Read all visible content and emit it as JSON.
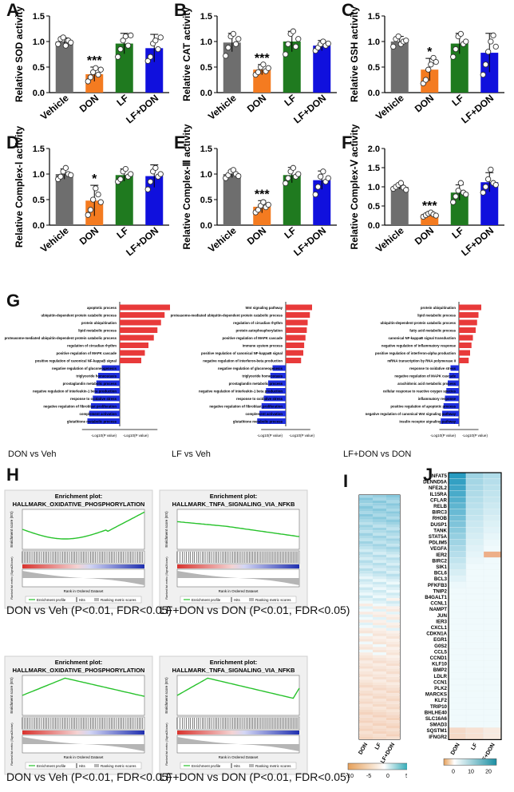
{
  "panels": {
    "A": {
      "letter": "A",
      "ylabel": "Relative SOD activity"
    },
    "B": {
      "letter": "B",
      "ylabel": "Relative CAT activity"
    },
    "C": {
      "letter": "C",
      "ylabel": "Relative GSH activity"
    },
    "D": {
      "letter": "D",
      "ylabel": "Relative Complex-Ⅰ activity"
    },
    "E": {
      "letter": "E",
      "ylabel": "Relative Complex-Ⅲ activity"
    },
    "F": {
      "letter": "F",
      "ylabel": "Relative Complex-Ⅴ activity"
    },
    "G": {
      "letter": "G",
      "subtitles": [
        "DON vs Veh",
        "LF vs Veh",
        "LF+DON vs DON"
      ],
      "axis_neg": "-Log10(P value)",
      "axis_pos": "-Log10(P value)"
    },
    "H": {
      "letter": "H",
      "plot_title": "Enrichment plot:",
      "es_label": "Enrichment score (ES)",
      "rank_label": "Rank in Ordered Dataset",
      "metric_label": "Ranked list metric (Signal2Noise)",
      "legend": [
        "Enrichment profile",
        "Hits",
        "Ranking metric scores"
      ],
      "plots": [
        {
          "hallmark": "HALLMARK_OXIDATIVE_PHOSPHORYLATION",
          "caption": "DON vs Veh  (P<0.01, FDR<0.05)"
        },
        {
          "hallmark": "HALLMARK_TNFA_SIGNALING_VIA_NFKB",
          "caption": "LF+DON vs DON  (P<0.01, FDR<0.05)"
        },
        {
          "hallmark": "HALLMARK_OXIDATIVE_PHOSPHORYLATION",
          "caption": "DON vs Veh  (P<0.01, FDR<0.05)"
        },
        {
          "hallmark": "HALLMARK_TNFA_SIGNALING_VIA_NFKB",
          "caption": "LF+DON vs DON  (P<0.01, FDR<0.05)"
        }
      ]
    },
    "I": {
      "letter": "I",
      "columns": [
        "DON",
        "LF",
        "LF+DON"
      ],
      "scale": [
        "-10",
        "-5",
        "0",
        "5"
      ]
    },
    "J": {
      "letter": "J",
      "columns": [
        "DON",
        "LF",
        "LF+DON"
      ],
      "scale": [
        "0",
        "10",
        "20"
      ],
      "genes": [
        "NFAT5",
        "DENND5A",
        "NFE2L2",
        "IL15RA",
        "CFLAR",
        "RELB",
        "BIRC3",
        "RHOB",
        "DUSP1",
        "TANK",
        "STAT5A",
        "PDLIM5",
        "VEGFA",
        "IER2",
        "BIRC2",
        "SIK1",
        "BCL6",
        "BCL3",
        "PFKFB3",
        "TNIP2",
        "B4GALT1",
        "CCNL1",
        "NAMPT",
        "JUN",
        "IER3",
        "CXCL1",
        "CDKN1A",
        "EGR1",
        "G0S2",
        "CCL5",
        "CCND1",
        "KLF10",
        "BMP2",
        "LDLR",
        "CCN1",
        "PLK2",
        "MARCKS",
        "KLF2",
        "TRIP10",
        "BHLHE40",
        "SLC16A6",
        "SMAD3",
        "SQSTM1",
        "IFNGR2"
      ]
    }
  },
  "chart_data": [
    {
      "type": "bar",
      "panel": "A",
      "ylabel": "Relative SOD activity",
      "categories": [
        "Vehicle",
        "DON",
        "LF",
        "LF+DON"
      ],
      "values": [
        1.0,
        0.36,
        0.96,
        0.87
      ],
      "errors": [
        0.07,
        0.14,
        0.2,
        0.27
      ],
      "ylim": [
        0,
        1.5
      ],
      "yticks": [
        "0.0",
        "0.5",
        "1.0",
        "1.5"
      ],
      "colors": [
        "#6e6e6e",
        "#f47b20",
        "#1f7a1f",
        "#1010dd"
      ],
      "significance": [
        "",
        "***",
        "",
        ""
      ],
      "points": [
        [
          0.95,
          1.05,
          1.08,
          0.92,
          1.02,
          0.98
        ],
        [
          0.22,
          0.3,
          0.4,
          0.48,
          0.35,
          0.45
        ],
        [
          0.7,
          0.85,
          1.02,
          1.1,
          0.92,
          1.12
        ],
        [
          0.62,
          0.7,
          0.96,
          1.02,
          0.85,
          1.08
        ]
      ]
    },
    {
      "type": "bar",
      "panel": "B",
      "ylabel": "Relative CAT activity",
      "categories": [
        "Vehicle",
        "DON",
        "LF",
        "LF+DON"
      ],
      "values": [
        0.98,
        0.45,
        1.0,
        0.92
      ],
      "errors": [
        0.18,
        0.1,
        0.2,
        0.1
      ],
      "ylim": [
        0,
        1.5
      ],
      "yticks": [
        "0.0",
        "0.5",
        "1.0",
        "1.5"
      ],
      "colors": [
        "#6e6e6e",
        "#f47b20",
        "#1f7a1f",
        "#1010dd"
      ],
      "significance": [
        "",
        "***",
        "",
        ""
      ],
      "points": [
        [
          0.72,
          0.88,
          1.1,
          1.15,
          0.95,
          1.05
        ],
        [
          0.35,
          0.4,
          0.5,
          0.55,
          0.42,
          0.48
        ],
        [
          0.75,
          0.95,
          1.15,
          1.2,
          0.9,
          1.05
        ],
        [
          0.82,
          0.88,
          0.95,
          1.0,
          0.92,
          0.96
        ]
      ]
    },
    {
      "type": "bar",
      "panel": "C",
      "ylabel": "Relative GSH activity",
      "categories": [
        "Vehicle",
        "DON",
        "LF",
        "LF+DON"
      ],
      "values": [
        1.0,
        0.45,
        0.96,
        0.78
      ],
      "errors": [
        0.1,
        0.22,
        0.2,
        0.38
      ],
      "ylim": [
        0,
        1.5
      ],
      "yticks": [
        "0.0",
        "0.5",
        "1.0",
        "1.5"
      ],
      "colors": [
        "#6e6e6e",
        "#f47b20",
        "#1f7a1f",
        "#1010dd"
      ],
      "significance": [
        "",
        "*",
        "",
        ""
      ],
      "points": [
        [
          0.9,
          1.05,
          1.1,
          0.95,
          1.0,
          1.02
        ],
        [
          0.18,
          0.25,
          0.45,
          0.55,
          0.68,
          0.6
        ],
        [
          0.7,
          0.85,
          1.1,
          1.15,
          0.95,
          1.0
        ],
        [
          0.35,
          0.55,
          0.8,
          1.0,
          1.12,
          0.9
        ]
      ]
    },
    {
      "type": "bar",
      "panel": "D",
      "ylabel": "Relative Complex-Ⅰ activity",
      "categories": [
        "Vehicle",
        "DON",
        "LF",
        "LF+DON"
      ],
      "values": [
        1.0,
        0.48,
        0.98,
        0.96
      ],
      "errors": [
        0.1,
        0.3,
        0.12,
        0.22
      ],
      "ylim": [
        0,
        1.5
      ],
      "yticks": [
        "0.0",
        "0.5",
        "1.0",
        "1.5"
      ],
      "colors": [
        "#6e6e6e",
        "#f47b20",
        "#1f7a1f",
        "#1010dd"
      ],
      "significance": [
        "",
        "*",
        "",
        ""
      ],
      "points": [
        [
          0.9,
          0.95,
          1.05,
          1.12,
          1.0,
          0.98
        ],
        [
          0.2,
          0.3,
          0.5,
          0.72,
          0.6,
          0.45
        ],
        [
          0.85,
          0.9,
          1.05,
          1.1,
          0.95,
          1.0
        ],
        [
          0.7,
          0.85,
          1.05,
          1.12,
          0.95,
          1.0
        ]
      ]
    },
    {
      "type": "bar",
      "panel": "E",
      "ylabel": "Relative Complex-Ⅲ activity",
      "categories": [
        "Vehicle",
        "DON",
        "LF",
        "LF+DON"
      ],
      "values": [
        1.0,
        0.36,
        0.98,
        0.88
      ],
      "errors": [
        0.07,
        0.12,
        0.15,
        0.18
      ],
      "ylim": [
        0,
        1.5
      ],
      "yticks": [
        "0.0",
        "0.5",
        "1.0",
        "1.5"
      ],
      "colors": [
        "#6e6e6e",
        "#f47b20",
        "#1f7a1f",
        "#1010dd"
      ],
      "significance": [
        "",
        "***",
        "",
        ""
      ],
      "points": [
        [
          0.92,
          0.98,
          1.05,
          1.08,
          1.0,
          0.96
        ],
        [
          0.25,
          0.3,
          0.38,
          0.45,
          0.35,
          0.4
        ],
        [
          0.82,
          0.92,
          1.05,
          1.12,
          0.95,
          1.0
        ],
        [
          0.6,
          0.75,
          0.95,
          1.05,
          0.85,
          0.92
        ]
      ]
    },
    {
      "type": "bar",
      "panel": "F",
      "ylabel": "Relative Complex-Ⅴ activity",
      "categories": [
        "Vehicle",
        "DON",
        "LF",
        "LF+DON"
      ],
      "values": [
        1.0,
        0.28,
        0.85,
        1.12
      ],
      "errors": [
        0.06,
        0.05,
        0.2,
        0.25
      ],
      "ylim": [
        0,
        2.0
      ],
      "yticks": [
        "0.0",
        "0.5",
        "1.0",
        "1.5",
        "2.0"
      ],
      "colors": [
        "#6e6e6e",
        "#f47b20",
        "#1f7a1f",
        "#1010dd"
      ],
      "significance": [
        "",
        "***",
        "",
        ""
      ],
      "points": [
        [
          0.95,
          1.0,
          1.05,
          1.1,
          0.98,
          0.92
        ],
        [
          0.22,
          0.26,
          0.3,
          0.33,
          0.28,
          0.25
        ],
        [
          0.6,
          0.75,
          0.9,
          1.1,
          0.85,
          0.8
        ],
        [
          0.85,
          1.0,
          1.2,
          1.45,
          1.1,
          1.05
        ]
      ]
    },
    {
      "type": "bar",
      "panel": "G",
      "comparison": "DON vs Veh",
      "orientation": "horizontal",
      "terms": [
        "apoptotic process",
        "ubiquitin-dependent protein catabolic process",
        "protein ubiquitination",
        "lipid metabolic process",
        "proteasome-mediated ubiquitin-dependent protein catabolic process",
        "regulation of circadian rhythm",
        "positive regulation of MAPK cascade",
        "positive regulation of canonical NF-kappaB signal",
        "negative regulation of gluconeogenesis",
        "triglyceride homeostasis",
        "prostaglandin metabolic process",
        "negative regulation of interleukin-1 beta production",
        "response to oxidative stress",
        "negative regulation of fibroblast proliferation",
        "complement activation",
        "glutathione metabolic process"
      ],
      "values": [
        14,
        12.5,
        11.5,
        10.5,
        9.5,
        8,
        7,
        6,
        -5,
        -6,
        -6.5,
        -7,
        -7.5,
        -8,
        -8.5,
        -9
      ]
    },
    {
      "type": "bar",
      "panel": "G",
      "comparison": "LF vs Veh",
      "orientation": "horizontal",
      "terms": [
        "Wnt signaling pathway",
        "proteasome-mediated ubiquitin-dependent protein catabolic process",
        "regulation of circadian rhythm",
        "protein autophosphorylation",
        "positive regulation of MAPK cascade",
        "immune system process",
        "positive regulation of canonical NF-kappaB signal",
        "negative regulation of interferon-beta production",
        "negative regulation of gluconeogenesis",
        "triglyceride homeostasis",
        "prostaglandin metabolic process",
        "negative regulation of interleukin-1 beta production",
        "response to oxidative stress",
        "negative regulation of fibroblast proliferation",
        "complement activation",
        "glutathione metabolic process"
      ],
      "values": [
        6,
        5.5,
        5,
        4.8,
        4.5,
        4.2,
        4,
        3.5,
        -3,
        -3.5,
        -4,
        -4.5,
        -5,
        -5.5,
        -6,
        -6.5
      ]
    },
    {
      "type": "bar",
      "panel": "G",
      "comparison": "LF+DON vs DON",
      "orientation": "horizontal",
      "terms": [
        "protein ubiquitination",
        "lipid metabolic process",
        "ubiquitin-dependent protein catabolic process",
        "fatty acid metabolic process",
        "canonical NF-kappaB signal transduction",
        "negative regulation of inflammatory response",
        "positive regulation of interferon-alpha production",
        "mRNA transcription by RNA polymerase II",
        "response to oxidative stress",
        "negative regulation of MAPK cascade",
        "arachidonic acid metabolic process",
        "cellular response to reactive oxygen species",
        "inflammatory response",
        "positive regulation of apoptotic process",
        "negative regulation of canonical Wnt signaling pathway",
        "insulin receptor signaling pathway"
      ],
      "values": [
        8,
        7,
        6.5,
        6,
        5,
        4.5,
        4,
        3.5,
        -3,
        -3.5,
        -4,
        -4.5,
        -5,
        -5.5,
        -6,
        -6.5
      ]
    }
  ]
}
